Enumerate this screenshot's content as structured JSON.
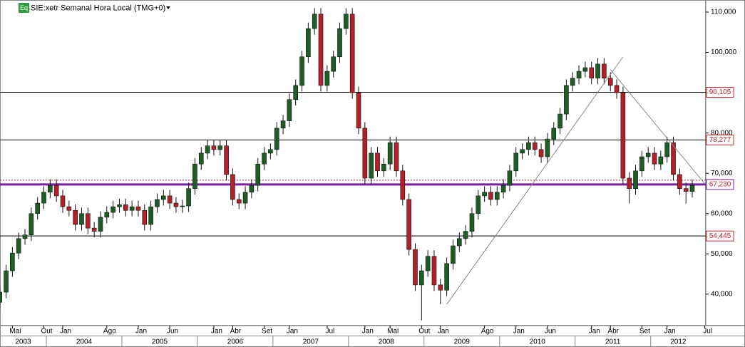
{
  "chart_data": {
    "type": "candlestick",
    "badge": "Eq",
    "title": "SIE:xetr Semanal Hora Local (TMG+0)",
    "x": [
      "2003-03",
      "2003-04",
      "2003-05",
      "2003-06",
      "2003-07",
      "2003-08",
      "2003-09",
      "2003-10",
      "2003-11",
      "2003-12",
      "2004-01",
      "2004-02",
      "2004-03",
      "2004-04",
      "2004-05",
      "2004-06",
      "2004-07",
      "2004-08",
      "2004-09",
      "2004-10",
      "2004-11",
      "2004-12",
      "2005-01",
      "2005-02",
      "2005-03",
      "2005-04",
      "2005-05",
      "2005-06",
      "2005-07",
      "2005-08",
      "2005-09",
      "2005-10",
      "2005-11",
      "2005-12",
      "2006-01",
      "2006-02",
      "2006-03",
      "2006-04",
      "2006-05",
      "2006-06",
      "2006-07",
      "2006-08",
      "2006-09",
      "2006-10",
      "2006-11",
      "2006-12",
      "2007-01",
      "2007-02",
      "2007-03",
      "2007-04",
      "2007-05",
      "2007-06",
      "2007-07",
      "2007-08",
      "2007-09",
      "2007-10",
      "2007-11",
      "2007-12",
      "2008-01",
      "2008-02",
      "2008-03",
      "2008-04",
      "2008-05",
      "2008-06",
      "2008-07",
      "2008-08",
      "2008-09",
      "2008-10",
      "2008-11",
      "2008-12",
      "2009-01",
      "2009-02",
      "2009-03",
      "2009-04",
      "2009-05",
      "2009-06",
      "2009-07",
      "2009-08",
      "2009-09",
      "2009-10",
      "2009-11",
      "2009-12",
      "2010-01",
      "2010-02",
      "2010-03",
      "2010-04",
      "2010-05",
      "2010-06",
      "2010-07",
      "2010-08",
      "2010-09",
      "2010-10",
      "2010-11",
      "2010-12",
      "2011-01",
      "2011-02",
      "2011-03",
      "2011-04",
      "2011-05",
      "2011-06",
      "2011-07",
      "2011-08",
      "2011-09",
      "2011-10",
      "2011-11",
      "2011-12",
      "2012-01",
      "2012-02",
      "2012-03",
      "2012-04",
      "2012-05"
    ],
    "open": [
      38000,
      40500,
      45800,
      50200,
      53800,
      54700,
      60000,
      62600,
      65300,
      67000,
      64400,
      61700,
      60800,
      57300,
      60000,
      56400,
      55600,
      59100,
      60300,
      61700,
      62200,
      60800,
      61700,
      60800,
      57300,
      61700,
      63500,
      64400,
      62600,
      61700,
      61900,
      66200,
      72300,
      75000,
      76800,
      75900,
      76800,
      69700,
      63500,
      62600,
      65300,
      67000,
      72300,
      75000,
      75900,
      81200,
      83000,
      88300,
      91800,
      98900,
      105900,
      109500,
      91800,
      95300,
      98900,
      105900,
      109500,
      90000,
      81200,
      68800,
      75000,
      70600,
      72300,
      77600,
      70600,
      63500,
      51100,
      42300,
      45800,
      49400,
      42300,
      41000,
      47600,
      52000,
      53800,
      55600,
      60000,
      64400,
      65300,
      63500,
      65300,
      67000,
      70600,
      75000,
      75900,
      77600,
      75900,
      74100,
      78500,
      81200,
      84700,
      91800,
      93600,
      95300,
      96200,
      93600,
      97100,
      93600,
      91800,
      90000,
      68800,
      66200,
      70600,
      74100,
      75000,
      72300,
      74100,
      77600,
      69700,
      66200,
      65500
    ],
    "high": [
      42000,
      47300,
      51700,
      55300,
      56200,
      61500,
      64100,
      66800,
      68500,
      68500,
      65900,
      63200,
      62300,
      61500,
      61500,
      57900,
      60600,
      61800,
      63200,
      63700,
      63700,
      63200,
      63200,
      62300,
      63200,
      65000,
      65900,
      65900,
      64100,
      63400,
      67700,
      73800,
      76500,
      78300,
      78300,
      78300,
      78300,
      71200,
      65000,
      66800,
      68500,
      73800,
      76500,
      77400,
      82700,
      84500,
      89800,
      93300,
      100400,
      107400,
      111000,
      111000,
      96800,
      100400,
      107400,
      111000,
      111000,
      91500,
      82700,
      76500,
      76500,
      73800,
      79100,
      79100,
      72100,
      65000,
      52600,
      47300,
      50900,
      50900,
      43800,
      49100,
      53500,
      55300,
      57100,
      61500,
      65900,
      66800,
      66800,
      66800,
      68500,
      72100,
      76500,
      77400,
      79100,
      79100,
      77400,
      80000,
      82700,
      86200,
      93300,
      95100,
      96800,
      97700,
      97700,
      98600,
      98600,
      95100,
      93300,
      91500,
      70300,
      72100,
      75600,
      76500,
      76500,
      75600,
      79100,
      79100,
      71200,
      67700,
      68500
    ],
    "low": [
      36500,
      39000,
      44300,
      48700,
      52300,
      53200,
      58500,
      61100,
      63800,
      62900,
      60200,
      59300,
      55800,
      55800,
      54900,
      54100,
      54100,
      57600,
      58800,
      60200,
      59300,
      59300,
      59300,
      55800,
      55800,
      60200,
      62000,
      61100,
      60200,
      60200,
      60400,
      64700,
      70800,
      73500,
      74400,
      74400,
      68200,
      62000,
      61100,
      61100,
      63800,
      65500,
      70800,
      73500,
      74400,
      79700,
      81500,
      86800,
      90300,
      97400,
      104400,
      90300,
      90300,
      93800,
      97400,
      104400,
      88500,
      79700,
      67300,
      67300,
      69100,
      69100,
      70800,
      69100,
      62000,
      49600,
      40800,
      33500,
      44300,
      40800,
      37500,
      39500,
      46100,
      50500,
      52300,
      54100,
      58500,
      62900,
      62000,
      62000,
      63800,
      65500,
      69100,
      73500,
      74400,
      74400,
      72600,
      72600,
      77000,
      79700,
      83200,
      90300,
      92100,
      93800,
      92100,
      92100,
      92100,
      90300,
      88500,
      67300,
      62500,
      64700,
      69100,
      72600,
      70800,
      70800,
      72600,
      68200,
      64700,
      62500,
      64000
    ],
    "close": [
      40500,
      45800,
      50200,
      53800,
      54700,
      60000,
      62600,
      65300,
      67000,
      64400,
      61700,
      60800,
      57300,
      60000,
      56400,
      55600,
      59100,
      60300,
      61700,
      62200,
      60800,
      61700,
      60800,
      57300,
      61700,
      63500,
      64400,
      62600,
      61700,
      61900,
      66200,
      72300,
      75000,
      76800,
      75900,
      76800,
      69700,
      63500,
      62600,
      65300,
      67000,
      72300,
      75000,
      75900,
      81200,
      83000,
      88300,
      91800,
      98900,
      105900,
      109500,
      91800,
      95300,
      98900,
      105900,
      109500,
      90000,
      81200,
      68800,
      75000,
      70600,
      72300,
      77600,
      70600,
      63500,
      51100,
      42300,
      45800,
      49400,
      42300,
      41000,
      47600,
      52000,
      53800,
      55600,
      60000,
      64400,
      65300,
      63500,
      65300,
      67000,
      70600,
      75000,
      75900,
      77600,
      75900,
      74100,
      78500,
      81200,
      84700,
      91800,
      93600,
      95300,
      96200,
      93600,
      97100,
      93600,
      91800,
      90000,
      68800,
      66200,
      70600,
      74100,
      75000,
      72300,
      74100,
      77600,
      69700,
      66200,
      65500,
      67000
    ],
    "up_color": "#1d5e27",
    "down_color": "#b3202a",
    "ylim": [
      32200,
      113000
    ],
    "yticks": [
      {
        "value": 40000,
        "label": "40,000"
      },
      {
        "value": 50000,
        "label": "50,000"
      },
      {
        "value": 60000,
        "label": "60,000"
      },
      {
        "value": 70000,
        "label": "70,000"
      },
      {
        "value": 80000,
        "label": "80,000"
      },
      {
        "value": 90000,
        "label": "90,000"
      },
      {
        "value": 100000,
        "label": "100,000"
      },
      {
        "value": 110000,
        "label": "110,000"
      }
    ],
    "levels": {
      "values": [
        90105,
        78277,
        67230,
        54445
      ],
      "value_labels": [
        "90,105",
        "78,277",
        "67,230",
        "54,445"
      ],
      "colors": [
        "#000000",
        "#000000",
        "#7b1f9c",
        "#000000"
      ]
    },
    "dotted_level": {
      "value": 68300,
      "color": "#c0282d"
    },
    "trendlines": [
      {
        "x": [
          "2009-02",
          "2011-06"
        ],
        "y": [
          37500,
          98900
        ]
      },
      {
        "x": [
          "2011-04",
          "2012-07"
        ],
        "y": [
          95700,
          67400
        ]
      }
    ],
    "month_ticks": [
      {
        "value": "2003-05",
        "label": "Mai"
      },
      {
        "value": "2003-10",
        "label": "Out"
      },
      {
        "value": "2004-01",
        "label": "Jan"
      },
      {
        "value": "2004-08",
        "label": "Ago"
      },
      {
        "value": "2005-01",
        "label": "Jan"
      },
      {
        "value": "2005-06",
        "label": "Jun"
      },
      {
        "value": "2006-01",
        "label": "Jan"
      },
      {
        "value": "2006-04",
        "label": "Abr"
      },
      {
        "value": "2006-09",
        "label": "Set"
      },
      {
        "value": "2007-01",
        "label": "Jan"
      },
      {
        "value": "2007-07",
        "label": "Jul"
      },
      {
        "value": "2008-01",
        "label": "Jan"
      },
      {
        "value": "2008-05",
        "label": "Mai"
      },
      {
        "value": "2008-10",
        "label": "Out"
      },
      {
        "value": "2009-01",
        "label": "Jan"
      },
      {
        "value": "2009-08",
        "label": "Ago"
      },
      {
        "value": "2010-01",
        "label": "Jan"
      },
      {
        "value": "2010-06",
        "label": "Jun"
      },
      {
        "value": "2011-01",
        "label": "Jan"
      },
      {
        "value": "2011-04",
        "label": "Abr"
      },
      {
        "value": "2011-09",
        "label": "Set"
      },
      {
        "value": "2012-01",
        "label": "Jan"
      },
      {
        "value": "2012-07",
        "label": "Jul"
      }
    ],
    "years": [
      "2003",
      "2004",
      "2005",
      "2006",
      "2007",
      "2008",
      "2009",
      "2010",
      "2011",
      "2012"
    ]
  }
}
